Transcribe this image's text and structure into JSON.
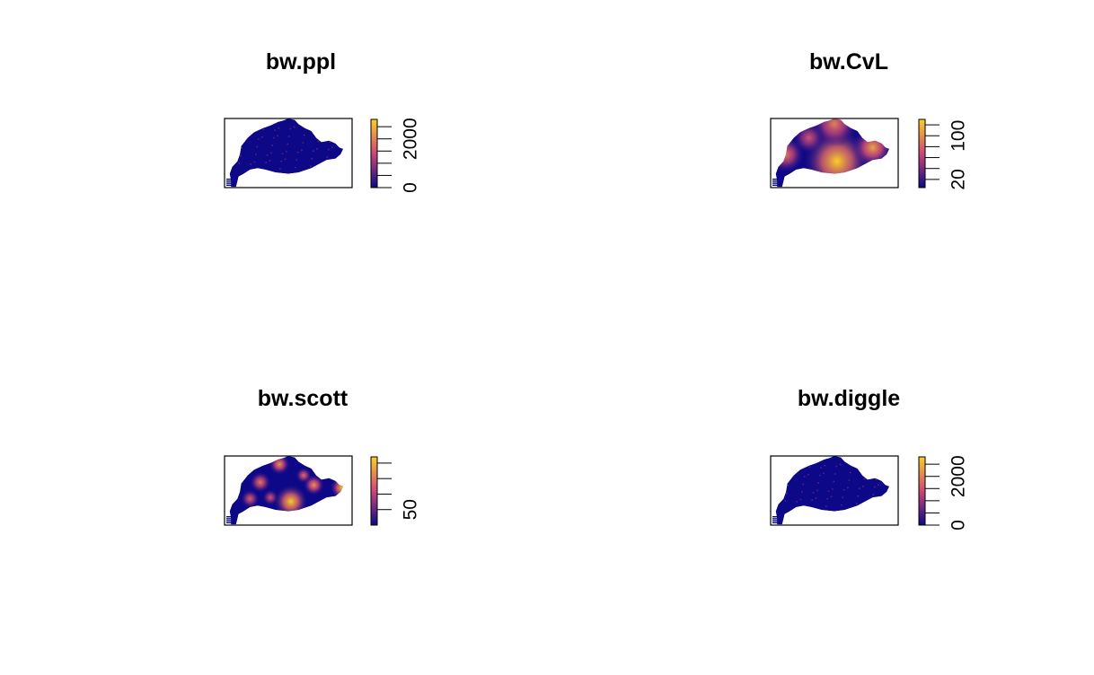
{
  "chart_data": [
    {
      "type": "heatmap",
      "title": "bw.ppl",
      "colorbar": {
        "range": [
          0,
          2800
        ],
        "ticks": [
          0,
          500,
          1000,
          1500,
          2000,
          2500
        ],
        "tick_labels": [
          "0",
          "",
          "",
          "",
          "2000",
          ""
        ]
      },
      "hotspots": []
    },
    {
      "type": "heatmap",
      "title": "bw.CvL",
      "colorbar": {
        "range": [
          5,
          130
        ],
        "ticks": [
          20,
          40,
          60,
          80,
          100,
          120
        ],
        "tick_labels": [
          "20",
          "",
          "",
          "",
          "100",
          ""
        ]
      },
      "hotspots": [
        {
          "x": 0.52,
          "y": 0.62,
          "r": 0.26,
          "v": 1.0
        },
        {
          "x": 0.5,
          "y": 0.08,
          "r": 0.18,
          "v": 0.72
        },
        {
          "x": 0.8,
          "y": 0.42,
          "r": 0.16,
          "v": 0.85
        },
        {
          "x": 0.12,
          "y": 0.52,
          "r": 0.14,
          "v": 0.7
        },
        {
          "x": 0.3,
          "y": 0.28,
          "r": 0.12,
          "v": 0.55
        }
      ]
    },
    {
      "type": "heatmap",
      "title": "bw.scott",
      "colorbar": {
        "range": [
          30,
          118
        ],
        "ticks": [
          50,
          70,
          90,
          110
        ],
        "tick_labels": [
          "50",
          "",
          "",
          ""
        ]
      },
      "hotspots": [
        {
          "x": 0.52,
          "y": 0.66,
          "r": 0.13,
          "v": 1.0
        },
        {
          "x": 0.92,
          "y": 0.46,
          "r": 0.09,
          "v": 0.95
        },
        {
          "x": 0.43,
          "y": 0.12,
          "r": 0.08,
          "v": 0.8
        },
        {
          "x": 0.28,
          "y": 0.38,
          "r": 0.08,
          "v": 0.7
        },
        {
          "x": 0.7,
          "y": 0.42,
          "r": 0.08,
          "v": 0.8
        },
        {
          "x": 0.2,
          "y": 0.62,
          "r": 0.07,
          "v": 0.6
        },
        {
          "x": 0.36,
          "y": 0.6,
          "r": 0.06,
          "v": 0.55
        },
        {
          "x": 0.62,
          "y": 0.28,
          "r": 0.06,
          "v": 0.65
        }
      ]
    },
    {
      "type": "heatmap",
      "title": "bw.diggle",
      "colorbar": {
        "range": [
          0,
          2800
        ],
        "ticks": [
          0,
          500,
          1000,
          1500,
          2000,
          2500
        ],
        "tick_labels": [
          "0",
          "",
          "",
          "",
          "2000",
          ""
        ]
      },
      "hotspots": []
    }
  ],
  "colors": {
    "low": "#0d0887",
    "mid": "#cc4778",
    "high": "#fcce25"
  }
}
